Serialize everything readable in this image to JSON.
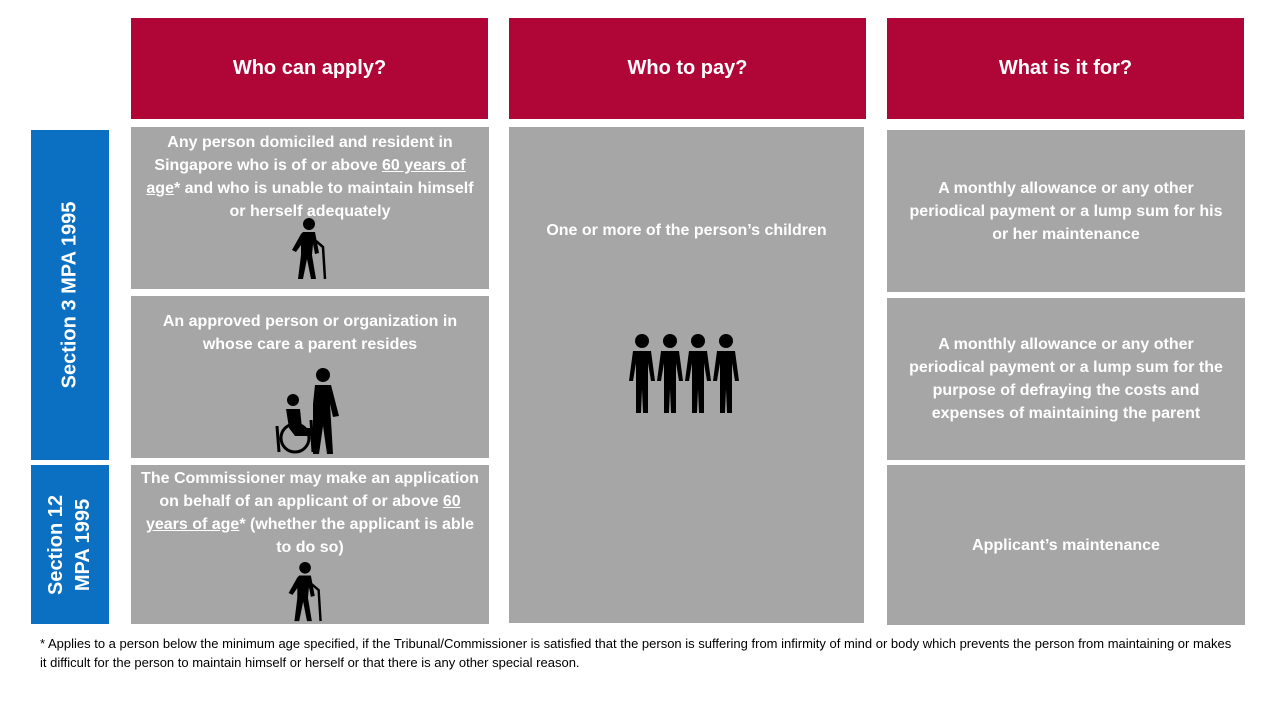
{
  "headers": [
    "Who can apply?",
    "Who to pay?",
    "What is it for?"
  ],
  "sections": [
    {
      "line1": "Section 3 MPA 1995"
    },
    {
      "line1": "Section 12",
      "line2": "MPA 1995"
    }
  ],
  "apply": {
    "row1": {
      "a": "Any person domiciled and resident in Singapore who is of or above ",
      "u1": "60 years of age",
      "b": "* and who is unable to maintain himself or herself adequately"
    },
    "row2": {
      "text": "An approved person or organization in whose care a parent resides"
    },
    "row3": {
      "a": "The Commissioner may make an application on behalf of an applicant of or above ",
      "u1": "60 years of age",
      "b": "* (whether the applicant is able to do so)"
    }
  },
  "pay": {
    "text": "One or more of the person’s children"
  },
  "purpose": {
    "row1": "A monthly allowance or any other periodical payment or a lump sum for his or her maintenance",
    "row2": "A monthly allowance or any other periodical payment or a lump sum for the purpose of defraying the costs and expenses of maintaining the parent",
    "row3": "Applicant’s maintenance"
  },
  "footnote": "* Applies to a person below the minimum age specified, if the Tribunal/Commissioner is satisfied that the person is suffering from infirmity of mind or body which prevents the person from maintaining or makes it difficult for the person to maintain himself or herself or that there is any other special reason.",
  "icons": [
    "elderly-person-icon",
    "caregiver-wheelchair-icon",
    "family-children-icon",
    "elderly-person-icon"
  ],
  "colors": {
    "header": "#b00537",
    "section": "#0b6fc2",
    "cell": "#a6a6a6"
  }
}
